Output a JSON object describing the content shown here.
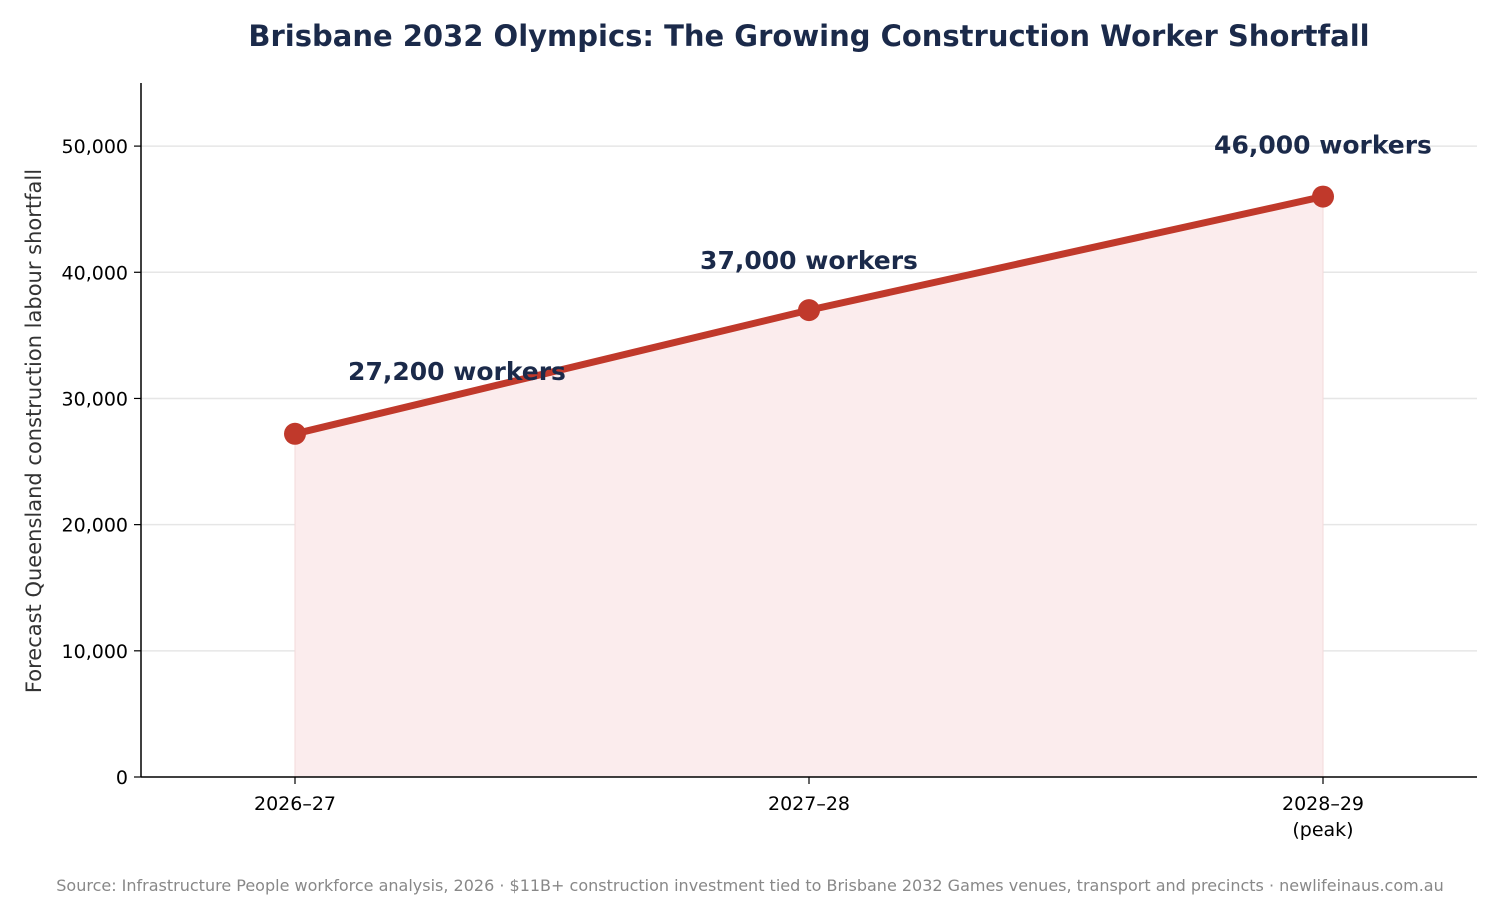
{
  "chart_data": {
    "type": "line",
    "title": "Brisbane 2032 Olympics: The Growing Construction Worker Shortfall",
    "ylabel": "Forecast Queensland construction labour shortfall",
    "xlabel": "",
    "categories": [
      "2026–27",
      "2027–28",
      "2028–29"
    ],
    "category_sublabels": [
      "",
      "",
      "(peak)"
    ],
    "values": [
      27200,
      37000,
      46000
    ],
    "data_labels": [
      "27,200 workers",
      "37,000 workers",
      "46,000 workers"
    ],
    "ylim": [
      0,
      55000
    ],
    "yticks": [
      0,
      10000,
      20000,
      30000,
      40000,
      50000
    ],
    "ytick_labels": [
      "0",
      "10,000",
      "20,000",
      "30,000",
      "40,000",
      "50,000"
    ],
    "grid": "horizontal",
    "area_fill": true,
    "colors": {
      "line": "#c0392b",
      "fill": "#fbeced",
      "title": "#1b2a4a",
      "label": "#1b2a4a",
      "grid": "#e6e6e6"
    }
  },
  "source": "Source: Infrastructure People workforce analysis, 2026 · $11B+ construction investment tied to Brisbane 2032 Games venues, transport and precincts · newlifeinaus.com.au"
}
